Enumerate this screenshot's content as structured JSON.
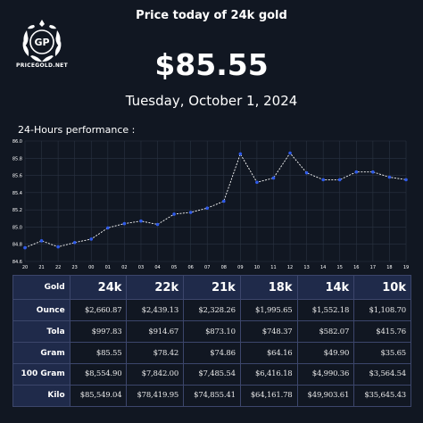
{
  "brand": {
    "logo_monogram": "GP",
    "name": "PRICEGOLD.NET"
  },
  "header": {
    "title": "Price today of 24k gold",
    "price": "$85.55",
    "date": "Tuesday, October 1, 2024"
  },
  "chart_label": "24-Hours performance :",
  "colors": {
    "background": "#111722",
    "line": "#ffffff",
    "marker": "#2f5bea",
    "table_header": "#1f2a4a",
    "grid": "#2a3342"
  },
  "chart_data": {
    "type": "line",
    "title": "",
    "xlabel": "",
    "ylabel": "",
    "categories": [
      "20",
      "21",
      "22",
      "23",
      "00",
      "01",
      "02",
      "03",
      "04",
      "05",
      "06",
      "07",
      "08",
      "09",
      "10",
      "11",
      "12",
      "13",
      "14",
      "15",
      "16",
      "17",
      "18",
      "19"
    ],
    "series": [
      {
        "values": [
          84.76,
          84.84,
          84.77,
          84.82,
          84.86,
          84.99,
          85.04,
          85.07,
          85.03,
          85.15,
          85.17,
          85.22,
          85.3,
          85.85,
          85.52,
          85.57,
          85.86,
          85.63,
          85.55,
          85.55,
          85.64,
          85.64,
          85.58,
          85.55
        ]
      }
    ],
    "ylim": [
      84.6,
      86.0
    ],
    "yticks": [
      "84.6",
      "84.8",
      "85.0",
      "85.2",
      "85.4",
      "85.6",
      "85.8",
      "86.0"
    ],
    "grid": true,
    "legend": "none"
  },
  "table": {
    "corner": "Gold",
    "columns": [
      "24k",
      "22k",
      "21k",
      "18k",
      "14k",
      "10k"
    ],
    "rows": [
      {
        "label": "Ounce",
        "values": [
          "$2,660.87",
          "$2,439.13",
          "$2,328.26",
          "$1,995.65",
          "$1,552.18",
          "$1,108.70"
        ]
      },
      {
        "label": "Tola",
        "values": [
          "$997.83",
          "$914.67",
          "$873.10",
          "$748.37",
          "$582.07",
          "$415.76"
        ]
      },
      {
        "label": "Gram",
        "values": [
          "$85.55",
          "$78.42",
          "$74.86",
          "$64.16",
          "$49.90",
          "$35.65"
        ]
      },
      {
        "label": "100 Gram",
        "values": [
          "$8,554.90",
          "$7,842.00",
          "$7,485.54",
          "$6,416.18",
          "$4,990.36",
          "$3,564.54"
        ]
      },
      {
        "label": "Kilo",
        "values": [
          "$85,549.04",
          "$78,419.95",
          "$74,855.41",
          "$64,161.78",
          "$49,903.61",
          "$35,645.43"
        ]
      }
    ]
  }
}
